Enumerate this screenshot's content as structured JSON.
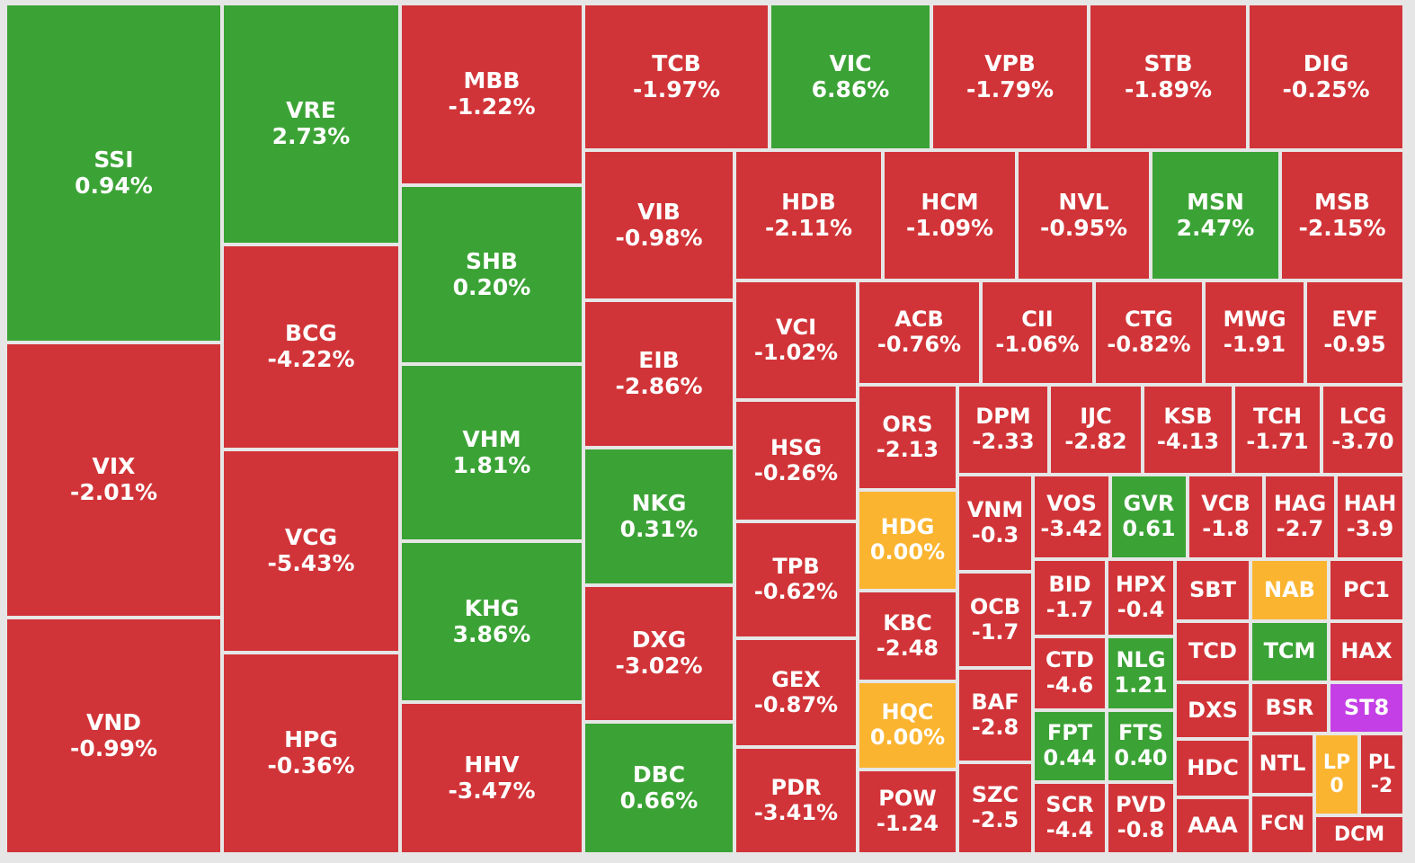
{
  "chart_data": {
    "type": "treemap",
    "title": "",
    "colors": {
      "down": "#d13438",
      "up": "#3ba335",
      "flat": "#fbb430",
      "ceiling": "#c43fe6"
    },
    "tiles": [
      {
        "symbol": "SSI",
        "change": "0.94%",
        "status": "up"
      },
      {
        "symbol": "VIX",
        "change": "-2.01%",
        "status": "down"
      },
      {
        "symbol": "VND",
        "change": "-0.99%",
        "status": "down"
      },
      {
        "symbol": "VRE",
        "change": "2.73%",
        "status": "up"
      },
      {
        "symbol": "BCG",
        "change": "-4.22%",
        "status": "down"
      },
      {
        "symbol": "VCG",
        "change": "-5.43%",
        "status": "down"
      },
      {
        "symbol": "HPG",
        "change": "-0.36%",
        "status": "down"
      },
      {
        "symbol": "MBB",
        "change": "-1.22%",
        "status": "down"
      },
      {
        "symbol": "SHB",
        "change": "0.20%",
        "status": "up"
      },
      {
        "symbol": "VHM",
        "change": "1.81%",
        "status": "up"
      },
      {
        "symbol": "KHG",
        "change": "3.86%",
        "status": "up"
      },
      {
        "symbol": "HHV",
        "change": "-3.47%",
        "status": "down"
      },
      {
        "symbol": "TCB",
        "change": "-1.97%",
        "status": "down"
      },
      {
        "symbol": "VIC",
        "change": "6.86%",
        "status": "up"
      },
      {
        "symbol": "VPB",
        "change": "-1.79%",
        "status": "down"
      },
      {
        "symbol": "STB",
        "change": "-1.89%",
        "status": "down"
      },
      {
        "symbol": "DIG",
        "change": "-0.25%",
        "status": "down"
      },
      {
        "symbol": "VIB",
        "change": "-0.98%",
        "status": "down"
      },
      {
        "symbol": "EIB",
        "change": "-2.86%",
        "status": "down"
      },
      {
        "symbol": "NKG",
        "change": "0.31%",
        "status": "up"
      },
      {
        "symbol": "DXG",
        "change": "-3.02%",
        "status": "down"
      },
      {
        "symbol": "DBC",
        "change": "0.66%",
        "status": "up"
      },
      {
        "symbol": "HDB",
        "change": "-2.11%",
        "status": "down"
      },
      {
        "symbol": "HCM",
        "change": "-1.09%",
        "status": "down"
      },
      {
        "symbol": "NVL",
        "change": "-0.95%",
        "status": "down"
      },
      {
        "symbol": "MSN",
        "change": "2.47%",
        "status": "up"
      },
      {
        "symbol": "MSB",
        "change": "-2.15%",
        "status": "down"
      },
      {
        "symbol": "VCI",
        "change": "-1.02%",
        "status": "down"
      },
      {
        "symbol": "HSG",
        "change": "-0.26%",
        "status": "down"
      },
      {
        "symbol": "TPB",
        "change": "-0.62%",
        "status": "down"
      },
      {
        "symbol": "GEX",
        "change": "-0.87%",
        "status": "down"
      },
      {
        "symbol": "PDR",
        "change": "-3.41%",
        "status": "down"
      },
      {
        "symbol": "ACB",
        "change": "-0.76%",
        "status": "down"
      },
      {
        "symbol": "CII",
        "change": "-1.06%",
        "status": "down"
      },
      {
        "symbol": "CTG",
        "change": "-0.82%",
        "status": "down"
      },
      {
        "symbol": "MWG",
        "change": "-1.91",
        "status": "down"
      },
      {
        "symbol": "EVF",
        "change": "-0.95",
        "status": "down"
      },
      {
        "symbol": "ORS",
        "change": "-2.13",
        "status": "down"
      },
      {
        "symbol": "HDG",
        "change": "0.00%",
        "status": "flat"
      },
      {
        "symbol": "KBC",
        "change": "-2.48",
        "status": "down"
      },
      {
        "symbol": "HQC",
        "change": "0.00%",
        "status": "flat"
      },
      {
        "symbol": "POW",
        "change": "-1.24",
        "status": "down"
      },
      {
        "symbol": "DPM",
        "change": "-2.33",
        "status": "down"
      },
      {
        "symbol": "IJC",
        "change": "-2.82",
        "status": "down"
      },
      {
        "symbol": "KSB",
        "change": "-4.13",
        "status": "down"
      },
      {
        "symbol": "TCH",
        "change": "-1.71",
        "status": "down"
      },
      {
        "symbol": "LCG",
        "change": "-3.70",
        "status": "down"
      },
      {
        "symbol": "VNM",
        "change": "-0.3",
        "status": "down"
      },
      {
        "symbol": "OCB",
        "change": "-1.7",
        "status": "down"
      },
      {
        "symbol": "BAF",
        "change": "-2.8",
        "status": "down"
      },
      {
        "symbol": "SZC",
        "change": "-2.5",
        "status": "down"
      },
      {
        "symbol": "VOS",
        "change": "-3.42",
        "status": "down"
      },
      {
        "symbol": "GVR",
        "change": "0.61",
        "status": "up"
      },
      {
        "symbol": "VCB",
        "change": "-1.8",
        "status": "down"
      },
      {
        "symbol": "HAG",
        "change": "-2.7",
        "status": "down"
      },
      {
        "symbol": "HAH",
        "change": "-3.9",
        "status": "down"
      },
      {
        "symbol": "BID",
        "change": "-1.7",
        "status": "down"
      },
      {
        "symbol": "HPX",
        "change": "-0.4",
        "status": "down"
      },
      {
        "symbol": "CTD",
        "change": "-4.6",
        "status": "down"
      },
      {
        "symbol": "NLG",
        "change": "1.21",
        "status": "up"
      },
      {
        "symbol": "FPT",
        "change": "0.44",
        "status": "up"
      },
      {
        "symbol": "FTS",
        "change": "0.40",
        "status": "up"
      },
      {
        "symbol": "SCR",
        "change": "-4.4",
        "status": "down"
      },
      {
        "symbol": "PVD",
        "change": "-0.8",
        "status": "down"
      },
      {
        "symbol": "SBT",
        "change": "",
        "status": "down"
      },
      {
        "symbol": "NAB",
        "change": "",
        "status": "flat"
      },
      {
        "symbol": "PC1",
        "change": "",
        "status": "down"
      },
      {
        "symbol": "TCD",
        "change": "",
        "status": "down"
      },
      {
        "symbol": "TCM",
        "change": "",
        "status": "up"
      },
      {
        "symbol": "HAX",
        "change": "",
        "status": "down"
      },
      {
        "symbol": "DXS",
        "change": "",
        "status": "down"
      },
      {
        "symbol": "BSR",
        "change": "",
        "status": "down"
      },
      {
        "symbol": "ST8",
        "change": "",
        "status": "ceiling"
      },
      {
        "symbol": "HDC",
        "change": "",
        "status": "down"
      },
      {
        "symbol": "NTL",
        "change": "",
        "status": "down"
      },
      {
        "symbol": "LP",
        "change": "0",
        "status": "flat"
      },
      {
        "symbol": "PL",
        "change": "-2",
        "status": "down"
      },
      {
        "symbol": "AAA",
        "change": "",
        "status": "down"
      },
      {
        "symbol": "FCN",
        "change": "",
        "status": "down"
      },
      {
        "symbol": "DCM",
        "change": "",
        "status": "down"
      }
    ]
  }
}
